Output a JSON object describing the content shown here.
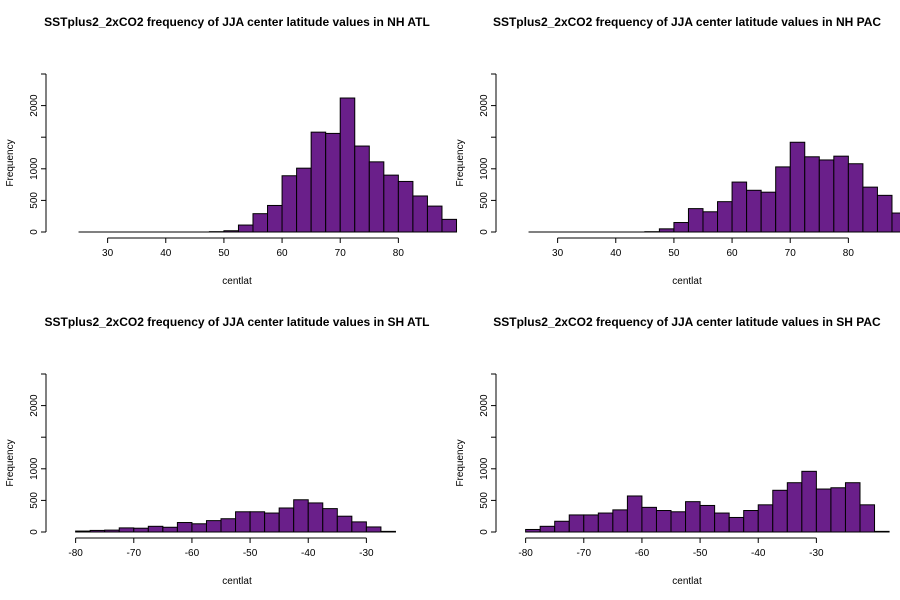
{
  "chart_data": [
    {
      "type": "bar",
      "title": "SSTplus2_2xCO2 frequency of JJA center latitude values in NH ATL",
      "xlabel": "centlat",
      "ylabel": "Frequency",
      "bar_color": "#6a1f8a",
      "xlim": [
        22.5,
        82
      ],
      "ylim": [
        0,
        2500
      ],
      "xticks": [
        30,
        40,
        50,
        60,
        70,
        80
      ],
      "yticks": [
        0,
        500,
        1000,
        2000
      ],
      "bin_width": 2.5,
      "bin_edges_start": 25,
      "values": [
        0,
        0,
        0,
        0,
        0,
        0,
        0,
        0,
        0,
        5,
        20,
        110,
        290,
        420,
        890,
        1010,
        1580,
        1560,
        2120,
        1360,
        1110,
        900,
        800,
        570,
        410,
        200
      ]
    },
    {
      "type": "bar",
      "title": "SSTplus2_2xCO2 frequency of JJA center latitude values in NH PAC",
      "xlabel": "centlat",
      "ylabel": "Frequency",
      "bar_color": "#6a1f8a",
      "xlim": [
        22.5,
        82
      ],
      "ylim": [
        0,
        2500
      ],
      "xticks": [
        30,
        40,
        50,
        60,
        70,
        80
      ],
      "yticks": [
        0,
        500,
        1000,
        2000
      ],
      "bin_width": 2.5,
      "bin_edges_start": 25,
      "values": [
        0,
        0,
        0,
        0,
        0,
        0,
        0,
        0,
        5,
        50,
        150,
        370,
        320,
        480,
        790,
        660,
        630,
        1030,
        1420,
        1190,
        1140,
        1200,
        1080,
        710,
        580,
        300
      ]
    },
    {
      "type": "bar",
      "title": "SSTplus2_2xCO2 frequency of JJA center latitude values in SH ATL",
      "xlabel": "centlat",
      "ylabel": "Frequency",
      "bar_color": "#6a1f8a",
      "xlim": [
        -82,
        -22.5
      ],
      "ylim": [
        0,
        2500
      ],
      "xticks": [
        -80,
        -70,
        -60,
        -50,
        -40,
        -30
      ],
      "yticks": [
        0,
        500,
        1000,
        2000
      ],
      "bin_width": 2.5,
      "bin_edges_start": -80,
      "values": [
        15,
        25,
        30,
        65,
        60,
        90,
        75,
        150,
        130,
        180,
        210,
        320,
        320,
        300,
        380,
        510,
        460,
        370,
        250,
        160,
        80,
        10
      ]
    },
    {
      "type": "bar",
      "title": "SSTplus2_2xCO2 frequency of JJA center latitude values in SH PAC",
      "xlabel": "centlat",
      "ylabel": "Frequency",
      "bar_color": "#6a1f8a",
      "xlim": [
        -82,
        -22.5
      ],
      "ylim": [
        0,
        2500
      ],
      "xticks": [
        -80,
        -70,
        -60,
        -50,
        -40,
        -30
      ],
      "yticks": [
        0,
        500,
        1000,
        2000
      ],
      "bin_width": 2.5,
      "bin_edges_start": -80,
      "values": [
        40,
        90,
        170,
        270,
        270,
        300,
        350,
        570,
        390,
        340,
        320,
        480,
        420,
        300,
        230,
        340,
        430,
        660,
        780,
        960,
        680,
        700,
        780,
        430,
        10
      ]
    }
  ]
}
